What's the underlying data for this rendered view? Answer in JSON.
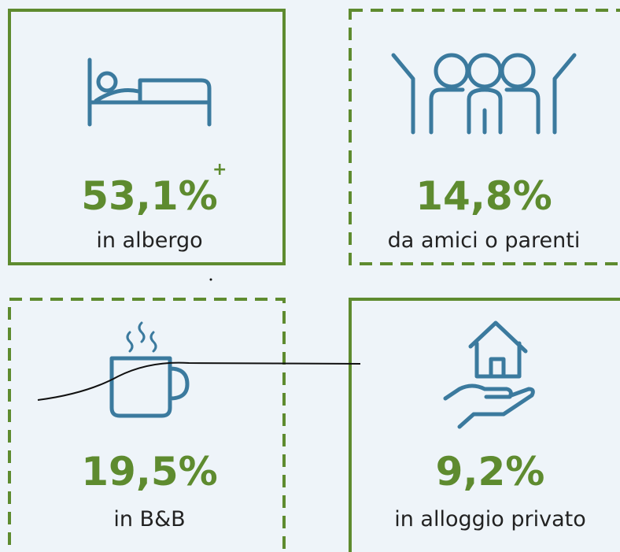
{
  "cards": [
    {
      "value": "53,1%",
      "mark": "+",
      "label": "in albergo"
    },
    {
      "value": "14,8%",
      "label": "da amici o parenti"
    },
    {
      "value": "19,5%",
      "label": "in B&B"
    },
    {
      "value": "9,2%",
      "label": "in alloggio privato"
    }
  ]
}
